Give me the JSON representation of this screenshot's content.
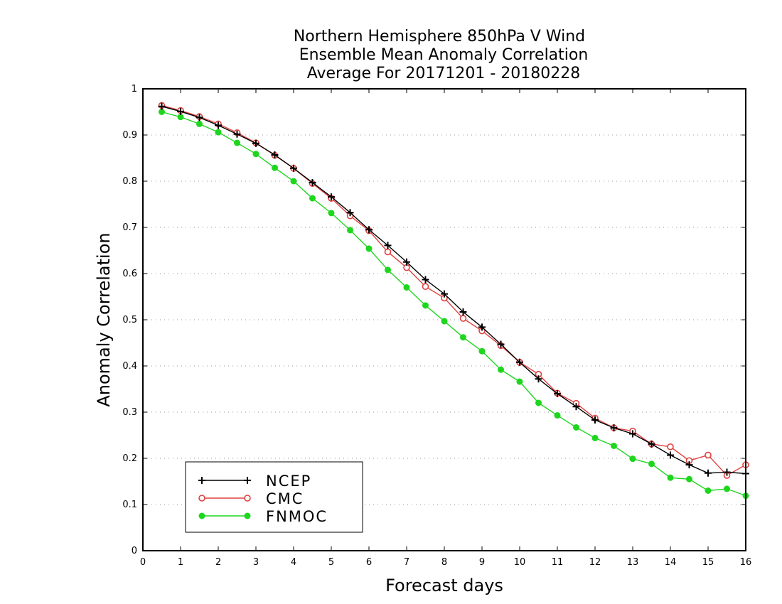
{
  "chart_data": {
    "type": "line",
    "title": [
      "Northern Hemisphere 850hPa V Wind",
      "Ensemble Mean Anomaly Correlation",
      "Average For 20171201 - 20180228"
    ],
    "xlabel": "Forecast days",
    "ylabel": "Anomaly Correlation",
    "xlim": [
      0,
      16
    ],
    "ylim": [
      0,
      1
    ],
    "xticks": [
      "0",
      "1",
      "2",
      "3",
      "4",
      "5",
      "6",
      "7",
      "8",
      "9",
      "10",
      "11",
      "12",
      "13",
      "14",
      "15",
      "16"
    ],
    "yticks": [
      "0",
      "0.1",
      "0.2",
      "0.3",
      "0.4",
      "0.5",
      "0.6",
      "0.7",
      "0.8",
      "0.9",
      "1"
    ],
    "grid": true,
    "legend_position": "bottom-left",
    "x": [
      0.5,
      1,
      1.5,
      2,
      2.5,
      3,
      3.5,
      4,
      4.5,
      5,
      5.5,
      6,
      6.5,
      7,
      7.5,
      8,
      8.5,
      9,
      9.5,
      10,
      10.5,
      11,
      11.5,
      12,
      12.5,
      13,
      13.5,
      14,
      14.5,
      15,
      15.5,
      16
    ],
    "series": [
      {
        "name": "NCEP",
        "color": "#000000",
        "marker": "plus",
        "values": [
          0.962,
          0.951,
          0.938,
          0.921,
          0.902,
          0.882,
          0.857,
          0.828,
          0.797,
          0.766,
          0.732,
          0.695,
          0.661,
          0.625,
          0.587,
          0.556,
          0.517,
          0.484,
          0.447,
          0.408,
          0.372,
          0.34,
          0.312,
          0.283,
          0.266,
          0.253,
          0.231,
          0.207,
          0.186,
          0.168,
          0.17,
          0.167
        ]
      },
      {
        "name": "CMC",
        "color": "#e0403e",
        "marker": "open-circle",
        "values": [
          0.964,
          0.953,
          0.94,
          0.924,
          0.905,
          0.883,
          0.856,
          0.828,
          0.795,
          0.763,
          0.725,
          0.693,
          0.647,
          0.613,
          0.572,
          0.547,
          0.503,
          0.476,
          0.444,
          0.408,
          0.382,
          0.341,
          0.319,
          0.287,
          0.266,
          0.259,
          0.231,
          0.225,
          0.195,
          0.207,
          0.163,
          0.186
        ]
      },
      {
        "name": "FNMOC",
        "color": "#1ed61e",
        "marker": "filled-circle",
        "values": [
          0.95,
          0.939,
          0.924,
          0.906,
          0.883,
          0.859,
          0.829,
          0.8,
          0.763,
          0.731,
          0.694,
          0.654,
          0.608,
          0.57,
          0.531,
          0.497,
          0.462,
          0.432,
          0.392,
          0.366,
          0.32,
          0.293,
          0.267,
          0.244,
          0.227,
          0.199,
          0.188,
          0.158,
          0.155,
          0.13,
          0.134,
          0.119
        ]
      }
    ]
  }
}
